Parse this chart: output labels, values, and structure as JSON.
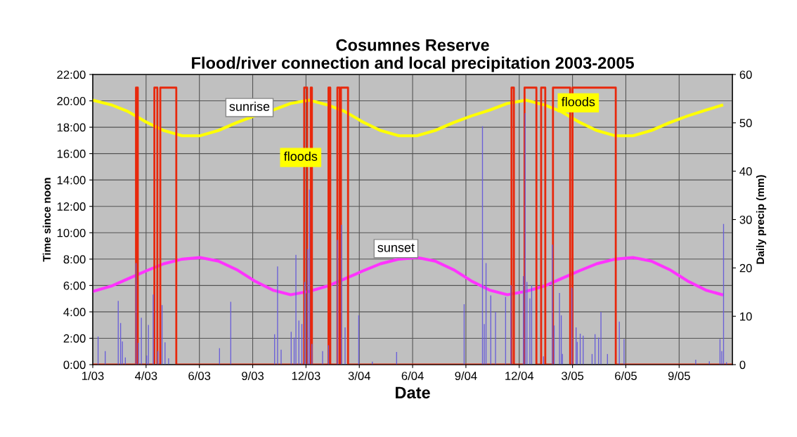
{
  "chart_data": {
    "type": "line",
    "title": "Cosumnes Reserve\nFlood/river connection and local precipitation 2003-2005",
    "xlabel": "Date",
    "ylabel": "Time since noon",
    "y2label": "Daily precip (mm)",
    "xlim": [
      "2003-01-01",
      "2005-12-16"
    ],
    "xticks": [
      {
        "value": "2003-01-01",
        "label": "1/03"
      },
      {
        "value": "2003-04-01",
        "label": "4/03"
      },
      {
        "value": "2003-06-30",
        "label": "6/03"
      },
      {
        "value": "2003-09-28",
        "label": "9/03"
      },
      {
        "value": "2003-12-27",
        "label": "12/03"
      },
      {
        "value": "2004-03-26",
        "label": "3/04"
      },
      {
        "value": "2004-06-24",
        "label": "6/04"
      },
      {
        "value": "2004-09-22",
        "label": "9/04"
      },
      {
        "value": "2004-12-21",
        "label": "12/04"
      },
      {
        "value": "2005-03-21",
        "label": "3/05"
      },
      {
        "value": "2005-06-19",
        "label": "6/05"
      },
      {
        "value": "2005-09-17",
        "label": "9/05"
      }
    ],
    "ylim": [
      0,
      22
    ],
    "yticks": [
      {
        "value": 0,
        "label": "0:00"
      },
      {
        "value": 2,
        "label": "2:00"
      },
      {
        "value": 4,
        "label": "4:00"
      },
      {
        "value": 6,
        "label": "6:00"
      },
      {
        "value": 8,
        "label": "8:00"
      },
      {
        "value": 10,
        "label": "10:00"
      },
      {
        "value": 12,
        "label": "12:00"
      },
      {
        "value": 14,
        "label": "14:00"
      },
      {
        "value": 16,
        "label": "16:00"
      },
      {
        "value": 18,
        "label": "18:00"
      },
      {
        "value": 20,
        "label": "20:00"
      },
      {
        "value": 22,
        "label": "22:00"
      }
    ],
    "y2lim": [
      0,
      60
    ],
    "y2ticks": [
      0,
      10,
      20,
      30,
      40,
      50,
      60
    ],
    "grid": true,
    "legend": false,
    "marker": "none",
    "line_style": "solid",
    "series": [
      {
        "type": "bar",
        "axis": "y2",
        "color": "#6a5fd8",
        "x": [
          "2003-01-10",
          "2003-01-22",
          "2003-02-13",
          "2003-02-17",
          "2003-02-20",
          "2003-02-25",
          "2003-03-15",
          "2003-03-19",
          "2003-03-24",
          "2003-04-02",
          "2003-04-05",
          "2003-04-13",
          "2003-04-21",
          "2003-04-28",
          "2003-05-03",
          "2003-05-09",
          "2003-08-03",
          "2003-08-22",
          "2003-11-04",
          "2003-11-09",
          "2003-11-15",
          "2003-12-02",
          "2003-12-07",
          "2003-12-10",
          "2003-12-15",
          "2003-12-20",
          "2003-12-25",
          "2003-12-30",
          "2004-01-02",
          "2004-01-06",
          "2004-01-24",
          "2004-02-03",
          "2004-02-18",
          "2004-02-25",
          "2004-03-02",
          "2004-03-25",
          "2004-04-17",
          "2004-05-28",
          "2004-09-19",
          "2004-10-20",
          "2004-10-23",
          "2004-10-26",
          "2004-11-03",
          "2004-11-11",
          "2004-11-28",
          "2004-12-07",
          "2004-12-28",
          "2004-12-31",
          "2005-01-03",
          "2005-01-08",
          "2005-01-11",
          "2005-01-31",
          "2005-02-15",
          "2005-02-18",
          "2005-02-27",
          "2005-03-02",
          "2005-03-04",
          "2005-03-20",
          "2005-03-27",
          "2005-03-29",
          "2005-04-03",
          "2005-04-08",
          "2005-04-23",
          "2005-04-28",
          "2005-05-04",
          "2005-05-08",
          "2005-05-19",
          "2005-06-08",
          "2005-06-16",
          "2005-10-15",
          "2005-11-07",
          "2005-11-25",
          "2005-11-28",
          "2005-12-01",
          "2005-12-06"
        ],
        "values": [
          5.8,
          2.8,
          13.2,
          8.6,
          4.8,
          1.5,
          21.0,
          4.5,
          9.7,
          1.9,
          8.2,
          14.5,
          2.8,
          12.3,
          4.6,
          1.3,
          3.4,
          13.0,
          6.3,
          20.3,
          3.1,
          6.8,
          5.6,
          22.7,
          9.1,
          8.4,
          17.1,
          23.9,
          36.2,
          4.3,
          2.8,
          4.0,
          25.8,
          28.9,
          7.7,
          10.2,
          0.6,
          2.6,
          12.5,
          49.3,
          8.4,
          21.0,
          14.3,
          10.9,
          14.0,
          16.4,
          18.3,
          52.0,
          17.1,
          13.7,
          16.4,
          1.7,
          24.8,
          8.1,
          14.8,
          10.2,
          2.2,
          15.9,
          7.7,
          4.7,
          6.4,
          6.0,
          2.2,
          6.3,
          5.6,
          10.9,
          2.2,
          8.9,
          5.3,
          1.0,
          0.7,
          5.3,
          2.8,
          29.1,
          0.5
        ]
      },
      {
        "color": "#ffff00",
        "x": [
          "2003-01-01",
          "2003-02-01",
          "2003-03-01",
          "2003-04-01",
          "2003-05-01",
          "2003-06-01",
          "2003-07-01",
          "2003-08-01",
          "2003-09-01",
          "2003-10-01",
          "2003-11-01",
          "2003-12-01",
          "2004-01-01",
          "2004-02-01",
          "2004-03-01",
          "2004-04-01",
          "2004-05-01",
          "2004-06-01",
          "2004-07-01",
          "2004-08-01",
          "2004-09-01",
          "2004-10-01",
          "2004-11-01",
          "2004-12-01",
          "2005-01-01",
          "2005-02-01",
          "2005-03-01",
          "2005-04-01",
          "2005-05-01",
          "2005-06-01",
          "2005-07-01",
          "2005-08-01",
          "2005-09-01",
          "2005-10-01",
          "2005-11-01",
          "2005-11-28"
        ],
        "values": [
          20.05,
          19.7,
          19.2,
          18.4,
          17.75,
          17.35,
          17.35,
          17.75,
          18.35,
          18.85,
          19.3,
          19.8,
          20.05,
          19.7,
          19.2,
          18.4,
          17.75,
          17.35,
          17.35,
          17.75,
          18.35,
          18.85,
          19.3,
          19.8,
          20.05,
          19.7,
          19.2,
          18.4,
          17.75,
          17.35,
          17.35,
          17.75,
          18.35,
          18.85,
          19.3,
          19.66
        ]
      },
      {
        "color": "#ff33ff",
        "x": [
          "2003-01-01",
          "2003-02-01",
          "2003-03-01",
          "2003-04-01",
          "2003-05-01",
          "2003-06-01",
          "2003-07-01",
          "2003-08-01",
          "2003-09-01",
          "2003-10-01",
          "2003-11-01",
          "2003-12-01",
          "2004-01-01",
          "2004-02-01",
          "2004-03-01",
          "2004-04-01",
          "2004-05-01",
          "2004-06-01",
          "2004-07-01",
          "2004-08-01",
          "2004-09-01",
          "2004-10-01",
          "2004-11-01",
          "2004-12-01",
          "2005-01-01",
          "2005-02-01",
          "2005-03-01",
          "2005-04-01",
          "2005-05-01",
          "2005-06-01",
          "2005-07-01",
          "2005-08-01",
          "2005-09-01",
          "2005-10-01",
          "2005-11-01",
          "2005-11-28"
        ],
        "values": [
          5.55,
          5.95,
          6.5,
          7.1,
          7.65,
          8.0,
          8.12,
          7.85,
          7.2,
          6.35,
          5.65,
          5.3,
          5.55,
          5.95,
          6.5,
          7.1,
          7.65,
          8.0,
          8.12,
          7.85,
          7.2,
          6.35,
          5.65,
          5.3,
          5.55,
          5.95,
          6.5,
          7.1,
          7.65,
          8.0,
          8.12,
          7.85,
          7.2,
          6.35,
          5.65,
          5.31
        ]
      },
      {
        "color": "#e8280c",
        "x": [
          "2003-01-01",
          "2003-03-15",
          "2003-03-15",
          "2003-03-18",
          "2003-03-18",
          "2003-04-15",
          "2003-04-15",
          "2003-04-20",
          "2003-04-20",
          "2003-04-25",
          "2003-04-25",
          "2003-05-22",
          "2003-05-22",
          "2003-12-24",
          "2003-12-24",
          "2003-12-29",
          "2003-12-29",
          "2004-01-04",
          "2004-01-04",
          "2004-01-06",
          "2004-01-06",
          "2004-02-03",
          "2004-02-03",
          "2004-02-06",
          "2004-02-06",
          "2004-02-18",
          "2004-02-18",
          "2004-02-22",
          "2004-02-22",
          "2004-02-24",
          "2004-02-24",
          "2004-03-07",
          "2004-03-07",
          "2004-12-08",
          "2004-12-08",
          "2004-12-12",
          "2004-12-12",
          "2004-12-30",
          "2004-12-30",
          "2005-01-19",
          "2005-01-19",
          "2005-01-27",
          "2005-01-27",
          "2005-02-03",
          "2005-02-03",
          "2005-02-16",
          "2005-02-16",
          "2005-03-17",
          "2005-03-17",
          "2005-03-21",
          "2005-03-21",
          "2005-06-02",
          "2005-06-02",
          "2005-12-16"
        ],
        "values": [
          0,
          0,
          21,
          21,
          0,
          0,
          21,
          21,
          0,
          0,
          21,
          21,
          0,
          0,
          21,
          21,
          0,
          0,
          21,
          21,
          0,
          0,
          21,
          21,
          0,
          0,
          21,
          21,
          0,
          0,
          21,
          21,
          0,
          0,
          21,
          21,
          0,
          0,
          21,
          21,
          0,
          0,
          21,
          21,
          0,
          0,
          21,
          21,
          0,
          0,
          21,
          21,
          0,
          0
        ]
      }
    ],
    "annotations": [
      "sunrise",
      "sunset",
      "floods",
      "floods"
    ]
  }
}
